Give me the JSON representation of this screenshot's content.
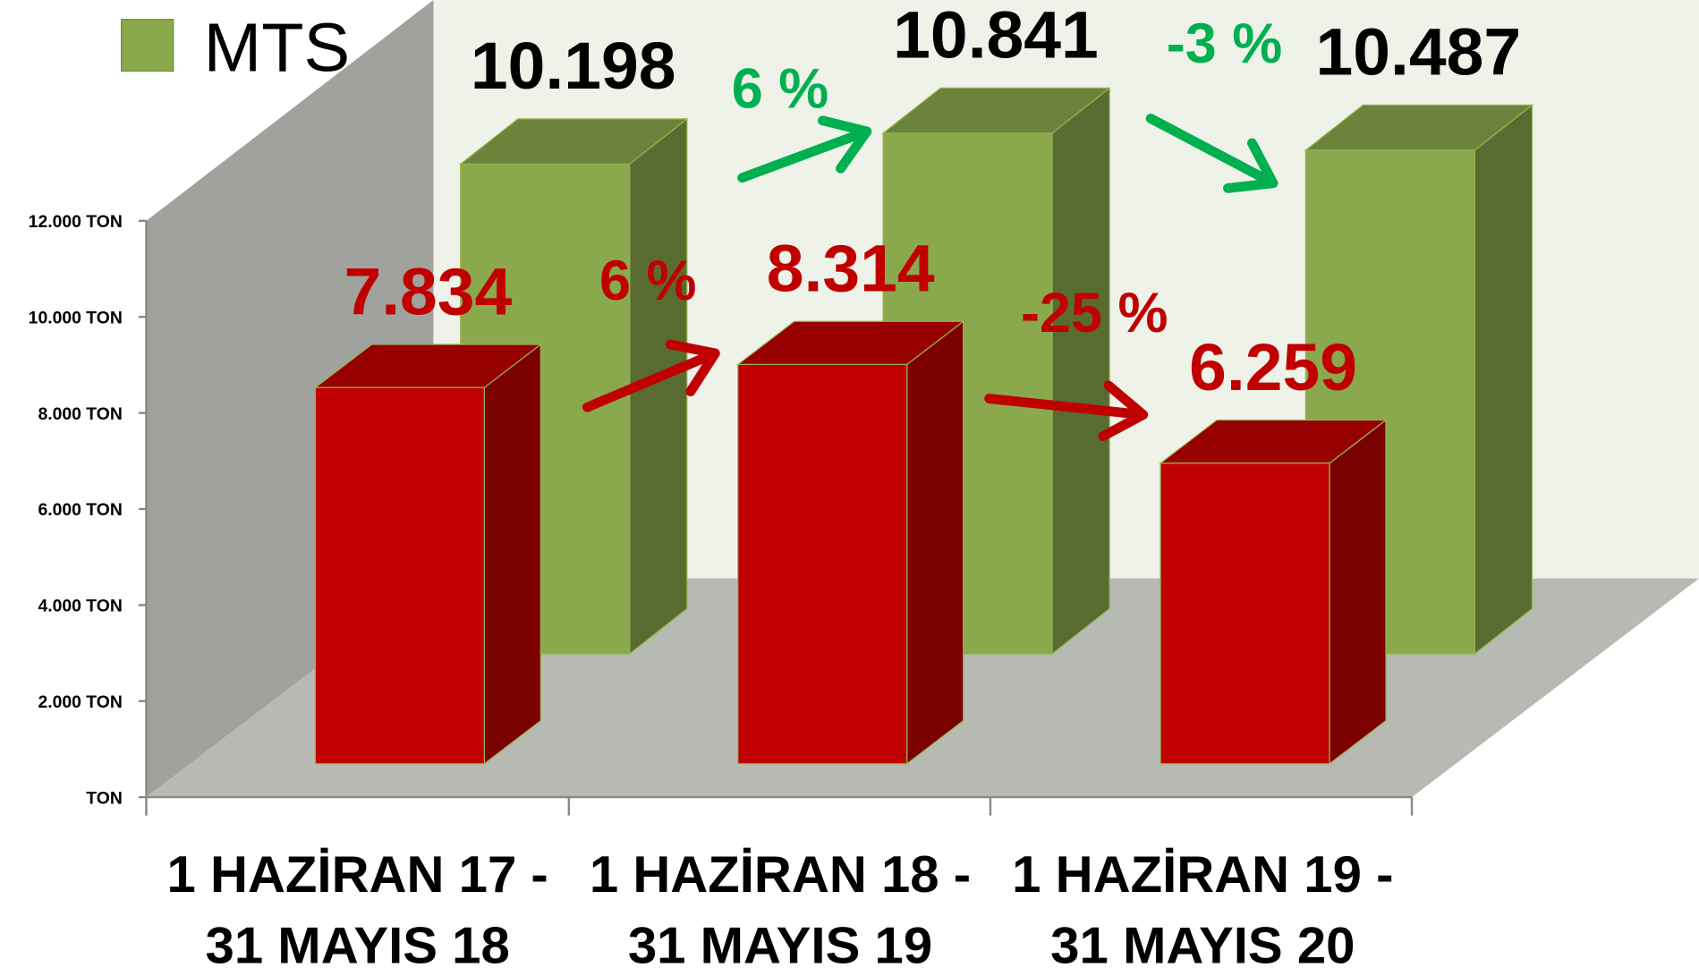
{
  "chart_data": {
    "type": "bar3d",
    "categories": [
      [
        "1 HAZİRAN 17 -",
        "31 MAYIS 18"
      ],
      [
        "1 HAZİRAN 18 -",
        "31 MAYIS 19"
      ],
      [
        "1 HAZİRAN 19 -",
        "31 MAYIS 20"
      ]
    ],
    "series": [
      {
        "color": "#c00000",
        "values": [
          7834,
          8314,
          6259
        ],
        "value_labels": [
          "7.834",
          "8.314",
          "6.259"
        ],
        "label_color": "#c00000"
      },
      {
        "name": "MTS",
        "color": "#8aa84c",
        "values": [
          10198,
          10841,
          10487
        ],
        "value_labels": [
          "10.198",
          "10.841",
          "10.487"
        ],
        "label_color": "#000000"
      }
    ],
    "ylim": [
      0,
      12000
    ],
    "yticks": [
      {
        "value": 0,
        "label": "TON"
      },
      {
        "value": 2000,
        "label": "2.000 TON"
      },
      {
        "value": 4000,
        "label": "4.000 TON"
      },
      {
        "value": 6000,
        "label": "6.000 TON"
      },
      {
        "value": 8000,
        "label": "8.000 TON"
      },
      {
        "value": 10000,
        "label": "10.000 TON"
      },
      {
        "value": 12000,
        "label": "12.000 TON"
      }
    ],
    "annotations": [
      {
        "text": "6 %",
        "color": "#c00000"
      },
      {
        "text": "-25 %",
        "color": "#c00000"
      },
      {
        "text": "6 %",
        "color": "#00b050"
      },
      {
        "text": "-3 %",
        "color": "#00b050"
      }
    ]
  }
}
